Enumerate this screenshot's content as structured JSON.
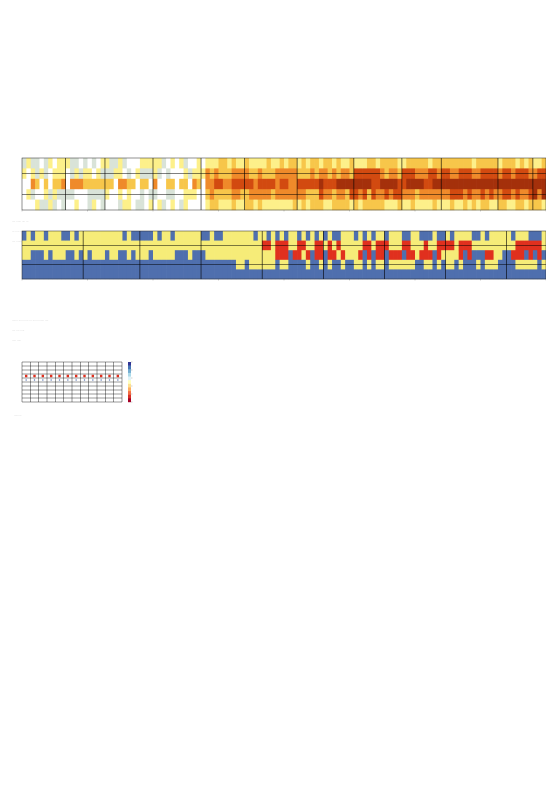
{
  "chart_data": [
    {
      "type": "heatmap",
      "rows": 5,
      "columns": 120,
      "palette": [
        "#ffffff",
        "#d9e3d8",
        "#fdf08a",
        "#f7c64a",
        "#ef8a2a",
        "#d24a10",
        "#a4300b"
      ],
      "band_boundaries": [
        10,
        19,
        30,
        41,
        51,
        63,
        76,
        87,
        96,
        109,
        117
      ],
      "activity_peak_rows": [
        2
      ],
      "notes": [
        "···· ······ ···· ···",
        "··· ····· ·····",
        "···· ·······"
      ]
    },
    {
      "type": "heatmap",
      "rows": 5,
      "columns": 120,
      "palette": [
        "#4f6fae",
        "#f6ec78",
        "#e0301e"
      ],
      "band_boundaries": [
        14,
        27,
        41,
        55,
        69,
        83,
        97,
        111
      ],
      "notes": [
        "······· ······ ····· ··· ······ ······· ····",
        "···· ···· ·····",
        "····· ·····"
      ]
    },
    {
      "type": "heatmap",
      "title": "",
      "rows": 10,
      "columns": 12,
      "highlight_row": 3,
      "cell_color": "#e0301e",
      "cell_color_alt": "#4f6fae",
      "colorbar": [
        "#313695",
        "#4575b4",
        "#74add1",
        "#abd9e9",
        "#e0f3f8",
        "#ffffbf",
        "#fee090",
        "#fdae61",
        "#f46d43",
        "#d73027",
        "#a50026"
      ],
      "notes": [
        "·········"
      ]
    }
  ]
}
